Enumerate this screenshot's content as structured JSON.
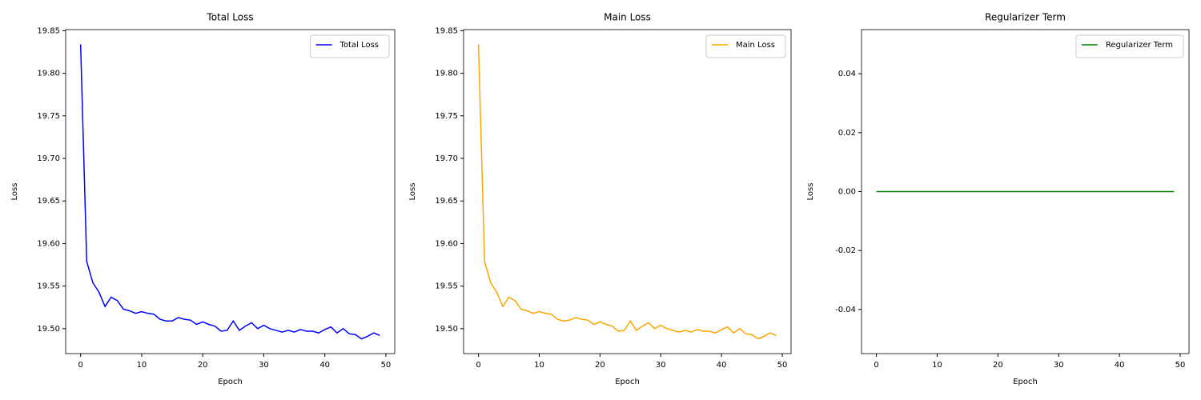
{
  "chart_data": [
    {
      "type": "line",
      "title": "Total Loss",
      "xlabel": "Epoch",
      "ylabel": "Loss",
      "x": [
        0,
        1,
        2,
        3,
        4,
        5,
        6,
        7,
        8,
        9,
        10,
        11,
        12,
        13,
        14,
        15,
        16,
        17,
        18,
        19,
        20,
        21,
        22,
        23,
        24,
        25,
        26,
        27,
        28,
        29,
        30,
        31,
        32,
        33,
        34,
        35,
        36,
        37,
        38,
        39,
        40,
        41,
        42,
        43,
        44,
        45,
        46,
        47,
        48,
        49
      ],
      "series": [
        {
          "name": "Total Loss",
          "color": "#0000ff",
          "values": [
            19.834,
            19.579,
            19.554,
            19.543,
            19.526,
            19.537,
            19.533,
            19.523,
            19.521,
            19.518,
            19.52,
            19.518,
            19.517,
            19.511,
            19.509,
            19.509,
            19.513,
            19.511,
            19.51,
            19.505,
            19.508,
            19.505,
            19.503,
            19.497,
            19.498,
            19.509,
            19.498,
            19.503,
            19.507,
            19.5,
            19.504,
            19.5,
            19.498,
            19.496,
            19.498,
            19.496,
            19.499,
            19.497,
            19.497,
            19.495,
            19.499,
            19.502,
            19.495,
            19.5,
            19.494,
            19.493,
            19.488,
            19.491,
            19.495,
            19.492
          ]
        }
      ],
      "xlim": [
        -2.45,
        51.45
      ],
      "ylim": [
        19.4707,
        19.8513
      ],
      "xticks": [
        0,
        10,
        20,
        30,
        40,
        50
      ],
      "yticks": [
        {
          "value": 19.5,
          "label": "19.50"
        },
        19.55,
        {
          "value": 19.6,
          "label": "19.60"
        },
        19.65,
        {
          "value": 19.7,
          "label": "19.70"
        },
        19.75,
        {
          "value": 19.8,
          "label": "19.80"
        },
        19.85
      ],
      "legend": "upper right"
    },
    {
      "type": "line",
      "title": "Main Loss",
      "xlabel": "Epoch",
      "ylabel": "Loss",
      "x": [
        0,
        1,
        2,
        3,
        4,
        5,
        6,
        7,
        8,
        9,
        10,
        11,
        12,
        13,
        14,
        15,
        16,
        17,
        18,
        19,
        20,
        21,
        22,
        23,
        24,
        25,
        26,
        27,
        28,
        29,
        30,
        31,
        32,
        33,
        34,
        35,
        36,
        37,
        38,
        39,
        40,
        41,
        42,
        43,
        44,
        45,
        46,
        47,
        48,
        49
      ],
      "series": [
        {
          "name": "Main Loss",
          "color": "#ffa500",
          "values": [
            19.834,
            19.579,
            19.554,
            19.543,
            19.526,
            19.537,
            19.533,
            19.523,
            19.521,
            19.518,
            19.52,
            19.518,
            19.517,
            19.511,
            19.509,
            19.51,
            19.513,
            19.511,
            19.51,
            19.505,
            19.508,
            19.505,
            19.503,
            19.497,
            19.498,
            19.509,
            19.498,
            19.503,
            19.507,
            19.5,
            19.504,
            19.5,
            19.498,
            19.496,
            19.498,
            19.496,
            19.499,
            19.497,
            19.497,
            19.495,
            19.499,
            19.502,
            19.495,
            19.5,
            19.494,
            19.493,
            19.488,
            19.491,
            19.495,
            19.492
          ]
        }
      ],
      "xlim": [
        -2.45,
        51.45
      ],
      "ylim": [
        19.4707,
        19.8513
      ],
      "xticks": [
        0,
        10,
        20,
        30,
        40,
        50
      ],
      "yticks": [
        {
          "value": 19.5,
          "label": "19.50"
        },
        19.55,
        {
          "value": 19.6,
          "label": "19.60"
        },
        19.65,
        {
          "value": 19.7,
          "label": "19.70"
        },
        19.75,
        {
          "value": 19.8,
          "label": "19.80"
        },
        19.85
      ],
      "legend": "upper right"
    },
    {
      "type": "line",
      "title": "Regularizer Term",
      "xlabel": "Epoch",
      "ylabel": "Loss",
      "x": [
        0,
        1,
        2,
        3,
        4,
        5,
        6,
        7,
        8,
        9,
        10,
        11,
        12,
        13,
        14,
        15,
        16,
        17,
        18,
        19,
        20,
        21,
        22,
        23,
        24,
        25,
        26,
        27,
        28,
        29,
        30,
        31,
        32,
        33,
        34,
        35,
        36,
        37,
        38,
        39,
        40,
        41,
        42,
        43,
        44,
        45,
        46,
        47,
        48,
        49
      ],
      "series": [
        {
          "name": "Regularizer Term",
          "color": "#008000",
          "values": [
            0,
            0,
            0,
            0,
            0,
            0,
            0,
            0,
            0,
            0,
            0,
            0,
            0,
            0,
            0,
            0,
            0,
            0,
            0,
            0,
            0,
            0,
            0,
            0,
            0,
            0,
            0,
            0,
            0,
            0,
            0,
            0,
            0,
            0,
            0,
            0,
            0,
            0,
            0,
            0,
            0,
            0,
            0,
            0,
            0,
            0,
            0,
            0,
            0,
            0
          ]
        }
      ],
      "xlim": [
        -2.45,
        51.45
      ],
      "ylim": [
        -0.055,
        0.055
      ],
      "xticks": [
        0,
        10,
        20,
        30,
        40,
        50
      ],
      "yticks": [
        -0.04,
        -0.02,
        {
          "value": 0,
          "label": "0.00"
        },
        0.02,
        0.04
      ],
      "legend": "upper right"
    }
  ]
}
